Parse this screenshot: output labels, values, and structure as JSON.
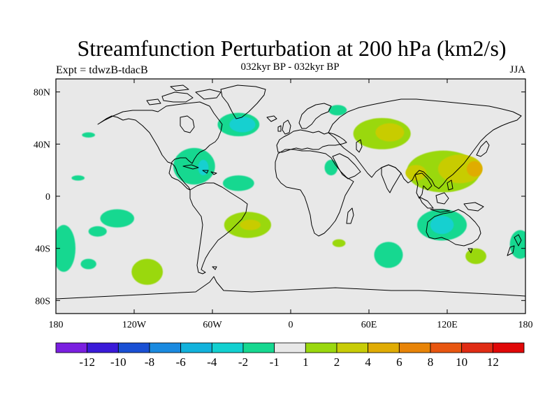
{
  "title": "Streamfunction Perturbation at 200 hPa (km2/s)",
  "left_label": "Expt = tdwzB-tdacB",
  "center_label": "032kyr BP - 032kyr BP",
  "right_label": "JJA",
  "map": {
    "projection": "cylindrical-equidistant",
    "lon_range": [
      -180,
      180
    ],
    "lat_range": [
      -90,
      90
    ],
    "background_color": "#e8e8e8",
    "x_ticks": [
      {
        "lon": -180,
        "label": "180"
      },
      {
        "lon": -120,
        "label": "120W"
      },
      {
        "lon": -60,
        "label": "60W"
      },
      {
        "lon": 0,
        "label": "0"
      },
      {
        "lon": 60,
        "label": "60E"
      },
      {
        "lon": 120,
        "label": "120E"
      },
      {
        "lon": 180,
        "label": "180"
      }
    ],
    "y_ticks": [
      {
        "lat": 80,
        "label": "80N"
      },
      {
        "lat": 40,
        "label": "40N"
      },
      {
        "lat": 0,
        "label": "0"
      },
      {
        "lat": -40,
        "label": "40S"
      },
      {
        "lat": -80,
        "label": "80S"
      }
    ]
  },
  "colorbar": {
    "colors": [
      "#7a1fe0",
      "#3a1ad8",
      "#1a50d4",
      "#1a8ae0",
      "#12b2dc",
      "#12d0d0",
      "#16d890",
      "#e8e8e8",
      "#9ad80e",
      "#c8cc06",
      "#e0ac04",
      "#e88408",
      "#e85610",
      "#e02c14",
      "#e00808"
    ],
    "labels": [
      "-12",
      "-10",
      "-8",
      "-6",
      "-4",
      "-2",
      "-1",
      "1",
      "2",
      "4",
      "6",
      "8",
      "10",
      "12"
    ]
  },
  "chart_data": {
    "type": "heatmap",
    "variable": "Streamfunction Perturbation at 200 hPa (km2/s)",
    "contour_levels": [
      -12,
      -10,
      -8,
      -6,
      -4,
      -2,
      -1,
      1,
      2,
      4,
      6,
      8,
      10,
      12
    ],
    "anomalies": [
      {
        "lon": -155,
        "lat": 47,
        "value": -1.5,
        "rlon": 5,
        "rlat": 2
      },
      {
        "lon": -163,
        "lat": 14,
        "value": -1.5,
        "rlon": 5,
        "rlat": 2
      },
      {
        "lon": -133,
        "lat": -17,
        "value": -1.5,
        "rlon": 13,
        "rlat": 7
      },
      {
        "lon": -148,
        "lat": -27,
        "value": -1.5,
        "rlon": 7,
        "rlat": 4
      },
      {
        "lon": -174,
        "lat": -40,
        "value": -1.5,
        "rlon": 9,
        "rlat": 18
      },
      {
        "lon": -155,
        "lat": -52,
        "value": -1.5,
        "rlon": 6,
        "rlat": 4
      },
      {
        "lon": -110,
        "lat": -58,
        "value": 1.5,
        "rlon": 12,
        "rlat": 10
      },
      {
        "lon": -74,
        "lat": 23,
        "value": -1.5,
        "rlon": 16,
        "rlat": 14
      },
      {
        "lon": -67,
        "lat": 22,
        "value": -2.5,
        "rlon": 4,
        "rlat": 6
      },
      {
        "lon": -40,
        "lat": 55,
        "value": -1.5,
        "rlon": 16,
        "rlat": 9
      },
      {
        "lon": -37,
        "lat": 55,
        "value": -2.5,
        "rlon": 10,
        "rlat": 6
      },
      {
        "lon": -40,
        "lat": 10,
        "value": -1.5,
        "rlon": 12,
        "rlat": 6
      },
      {
        "lon": -33,
        "lat": -22,
        "value": 1.5,
        "rlon": 18,
        "rlat": 10
      },
      {
        "lon": -31,
        "lat": -22,
        "value": 3,
        "rlon": 8,
        "rlat": 4
      },
      {
        "lon": 31,
        "lat": 22,
        "value": -1.5,
        "rlon": 5,
        "rlat": 6
      },
      {
        "lon": 36,
        "lat": 66,
        "value": -1.5,
        "rlon": 7,
        "rlat": 4
      },
      {
        "lon": 37,
        "lat": -36,
        "value": 1.5,
        "rlon": 5,
        "rlat": 3
      },
      {
        "lon": 70,
        "lat": 48,
        "value": 1.5,
        "rlon": 22,
        "rlat": 12
      },
      {
        "lon": 76,
        "lat": 49,
        "value": 3,
        "rlon": 11,
        "rlat": 7
      },
      {
        "lon": 117,
        "lat": 19,
        "value": 1.5,
        "rlon": 28,
        "rlat": 16
      },
      {
        "lon": 130,
        "lat": 21,
        "value": 3,
        "rlon": 17,
        "rlat": 11
      },
      {
        "lon": 96,
        "lat": 18,
        "value": 3,
        "rlon": 8,
        "rlat": 6
      },
      {
        "lon": 141,
        "lat": 21,
        "value": 4.5,
        "rlon": 6,
        "rlat": 6
      },
      {
        "lon": 75,
        "lat": -45,
        "value": -1.5,
        "rlon": 11,
        "rlat": 10
      },
      {
        "lon": 116,
        "lat": -22,
        "value": -1.5,
        "rlon": 19,
        "rlat": 12
      },
      {
        "lon": 116,
        "lat": -22,
        "value": -2.5,
        "rlon": 9,
        "rlat": 7
      },
      {
        "lon": 142,
        "lat": -46,
        "value": 1.5,
        "rlon": 8,
        "rlat": 6
      },
      {
        "lon": 176,
        "lat": -37,
        "value": -1.5,
        "rlon": 8,
        "rlat": 11
      }
    ]
  }
}
